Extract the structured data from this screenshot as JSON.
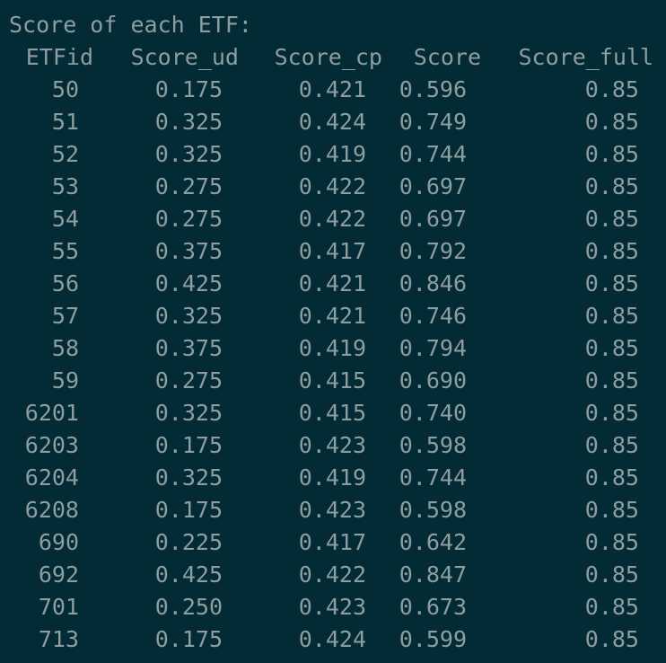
{
  "title": "Score of each ETF:",
  "table": {
    "columns": [
      "ETFid",
      "Score_ud",
      "Score_cp",
      "Score",
      "Score_full"
    ],
    "rows": [
      [
        "50",
        "0.175",
        "0.421",
        "0.596",
        "0.85"
      ],
      [
        "51",
        "0.325",
        "0.424",
        "0.749",
        "0.85"
      ],
      [
        "52",
        "0.325",
        "0.419",
        "0.744",
        "0.85"
      ],
      [
        "53",
        "0.275",
        "0.422",
        "0.697",
        "0.85"
      ],
      [
        "54",
        "0.275",
        "0.422",
        "0.697",
        "0.85"
      ],
      [
        "55",
        "0.375",
        "0.417",
        "0.792",
        "0.85"
      ],
      [
        "56",
        "0.425",
        "0.421",
        "0.846",
        "0.85"
      ],
      [
        "57",
        "0.325",
        "0.421",
        "0.746",
        "0.85"
      ],
      [
        "58",
        "0.375",
        "0.419",
        "0.794",
        "0.85"
      ],
      [
        "59",
        "0.275",
        "0.415",
        "0.690",
        "0.85"
      ],
      [
        "6201",
        "0.325",
        "0.415",
        "0.740",
        "0.85"
      ],
      [
        "6203",
        "0.175",
        "0.423",
        "0.598",
        "0.85"
      ],
      [
        "6204",
        "0.325",
        "0.419",
        "0.744",
        "0.85"
      ],
      [
        "6208",
        "0.175",
        "0.423",
        "0.598",
        "0.85"
      ],
      [
        "690",
        "0.225",
        "0.417",
        "0.642",
        "0.85"
      ],
      [
        "692",
        "0.425",
        "0.422",
        "0.847",
        "0.85"
      ],
      [
        "701",
        "0.250",
        "0.423",
        "0.673",
        "0.85"
      ],
      [
        "713",
        "0.175",
        "0.424",
        "0.599",
        "0.85"
      ]
    ]
  },
  "colors": {
    "background": "#022b35",
    "text": "#8e9e9f"
  }
}
